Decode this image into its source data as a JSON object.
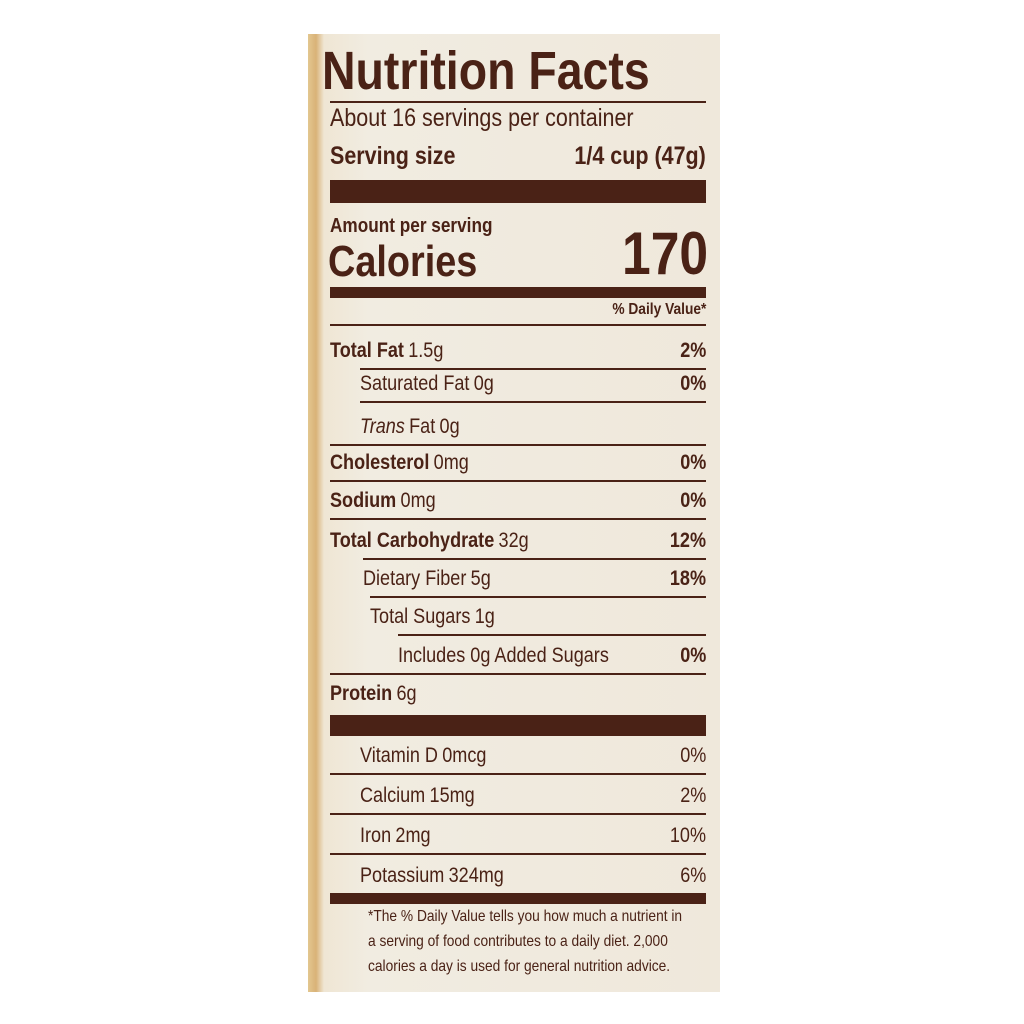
{
  "title": "Nutrition Facts",
  "servings": "About 16 servings per container",
  "serving_size": {
    "label": "Serving size",
    "value": "1/4 cup (47g)"
  },
  "amount_per_serving": "Amount per serving",
  "calories": {
    "label": "Calories",
    "value": "170"
  },
  "daily_value_header": "% Daily Value*",
  "nutrients": [
    {
      "name": "Total Fat",
      "amount": "1.5g",
      "dv": "2%"
    },
    {
      "name": "Saturated Fat",
      "amount": "0g",
      "dv": "0%"
    },
    {
      "name_italic": "Trans",
      "name": "Fat",
      "amount": "0g"
    },
    {
      "name": "Cholesterol",
      "amount": "0mg",
      "dv": "0%"
    },
    {
      "name": "Sodium",
      "amount": "0mg",
      "dv": "0%"
    },
    {
      "name": "Total Carbohydrate",
      "amount": "32g",
      "dv": "12%"
    },
    {
      "name": "Dietary Fiber",
      "amount": "5g",
      "dv": "18%"
    },
    {
      "name": "Total Sugars",
      "amount": "1g"
    },
    {
      "name": "Includes 0g Added Sugars",
      "dv": "0%"
    },
    {
      "name": "Protein",
      "amount": "6g"
    }
  ],
  "vitamins": [
    {
      "name": "Vitamin D",
      "amount": "0mcg",
      "dv": "0%"
    },
    {
      "name": "Calcium",
      "amount": "15mg",
      "dv": "2%"
    },
    {
      "name": "Iron",
      "amount": "2mg",
      "dv": "10%"
    },
    {
      "name": "Potassium",
      "amount": "324mg",
      "dv": "6%"
    }
  ],
  "footnote": [
    "*The % Daily Value tells you how much a nutrient in",
    "a serving of food contributes to a daily diet. 2,000",
    "calories a day is used for general nutrition advice."
  ]
}
